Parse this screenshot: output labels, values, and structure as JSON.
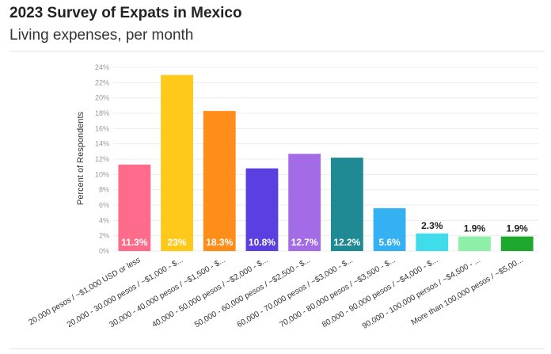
{
  "chart_data": {
    "type": "bar",
    "title": "2023 Survey of Expats in Mexico",
    "subtitle": "Living expenses, per month",
    "ylabel": "Percent of Respondents",
    "ylim": [
      0,
      24
    ],
    "yticks": [
      "0%",
      "2%",
      "4%",
      "6%",
      "8%",
      "10%",
      "12%",
      "14%",
      "16%",
      "18%",
      "20%",
      "22%",
      "24%"
    ],
    "grid": true,
    "categories": [
      "20,000 pesos / ~$1,000 USD or less",
      "20,000 - 30,000 pesos / ~$1,000 - $...",
      "30,000 - 40,000 pesos / ~$1,500 - $...",
      "40,000 - 50,000 pesos / ~$2,000 - $...",
      "50,000 - 60,000 pesos / ~$2,500 - $...",
      "60,000 - 70,000 pesos / ~$3,000 - $...",
      "70,000 - 80,000 pesos / ~$3,500 - $...",
      "80,000 - 90,000 pesos / ~$4,000 - $...",
      "90,000 - 100,000 persos / ~$4,500 - ...",
      "More than 100,000 pesos / ~$5,00..."
    ],
    "values": [
      11.3,
      23,
      18.3,
      10.8,
      12.7,
      12.2,
      5.6,
      2.3,
      1.9,
      1.9
    ],
    "labels": [
      "11.3%",
      "23%",
      "18.3%",
      "10.8%",
      "12.7%",
      "12.2%",
      "5.6%",
      "2.3%",
      "1.9%",
      "1.9%"
    ],
    "colors": [
      "#ff6b8a",
      "#ffc91a",
      "#ff8d1a",
      "#5c3fe0",
      "#a46be6",
      "#1f8a94",
      "#33b1f2",
      "#3fdceb",
      "#8ef0a8",
      "#1fa82e"
    ]
  }
}
